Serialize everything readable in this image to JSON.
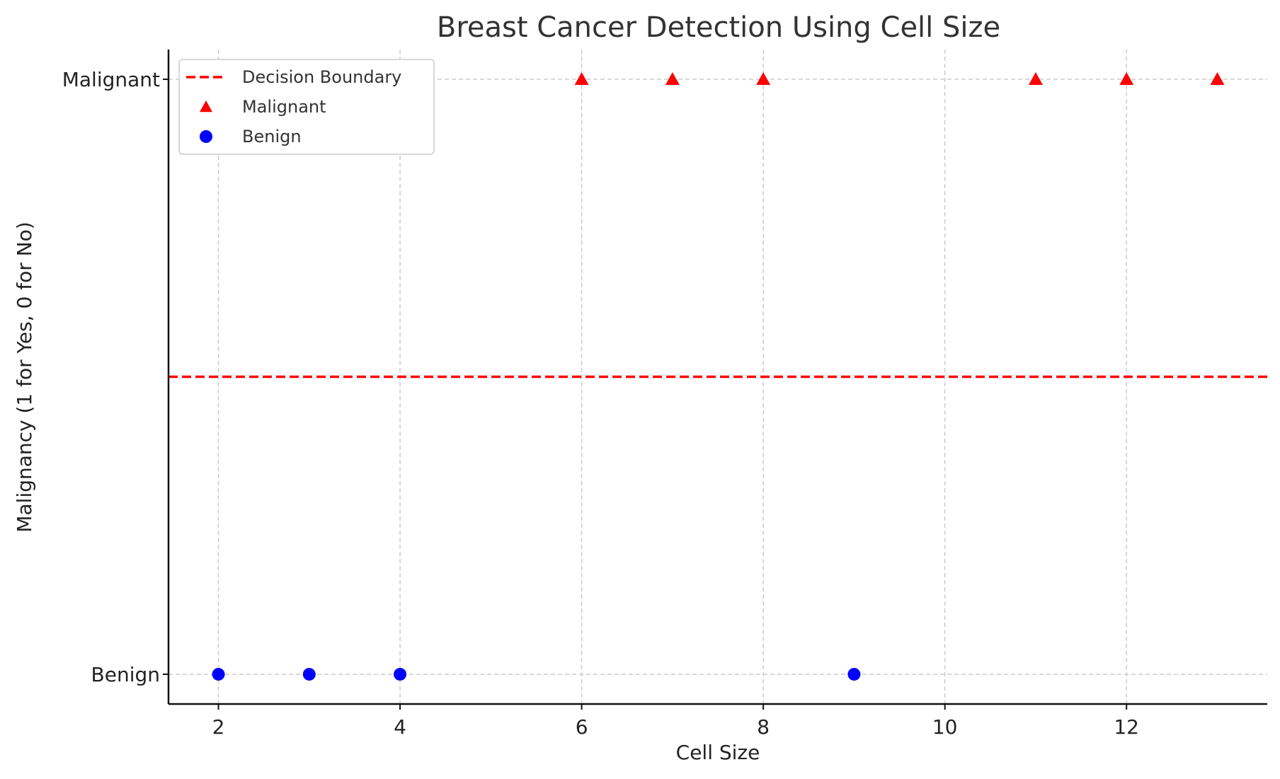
{
  "chart_data": {
    "type": "scatter",
    "title": "Breast Cancer Detection Using Cell Size",
    "xlabel": "Cell Size",
    "ylabel": "Malignancy (1 for Yes, 0 for No)",
    "xlim": [
      1.45,
      13.55
    ],
    "ylim": [
      -0.05,
      1.05
    ],
    "xticks": [
      2,
      4,
      6,
      8,
      10,
      12
    ],
    "yticks": [
      {
        "value": 0,
        "label": "Benign"
      },
      {
        "value": 1,
        "label": "Malignant"
      }
    ],
    "grid": true,
    "legend_position": "upper-left",
    "decision_boundary": {
      "name": "Decision Boundary",
      "y": 0.5,
      "style": "dashed",
      "color": "#ff0000"
    },
    "series": [
      {
        "name": "Malignant",
        "marker": "triangle",
        "color": "#ff0000",
        "x": [
          6,
          7,
          8,
          11,
          12,
          13
        ],
        "y": [
          1,
          1,
          1,
          1,
          1,
          1
        ]
      },
      {
        "name": "Benign",
        "marker": "circle",
        "color": "#0000ff",
        "x": [
          2,
          3,
          4,
          9
        ],
        "y": [
          0,
          0,
          0,
          0
        ]
      }
    ]
  }
}
